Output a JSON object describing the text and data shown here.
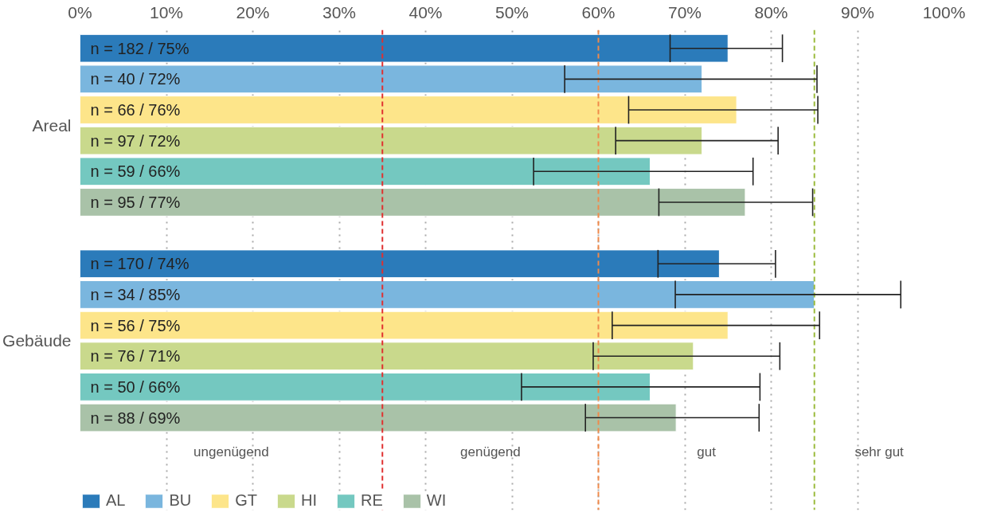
{
  "chart_data": {
    "type": "bar",
    "orientation": "horizontal",
    "categories": [
      "Areal",
      "Gebäude"
    ],
    "series": [
      {
        "name": "AL",
        "color": "#2b7bba",
        "values": [
          75,
          74
        ],
        "errors": [
          [
            68.3,
            81.3
          ],
          [
            66.9,
            80.5
          ]
        ],
        "value_labels": [
          "n = 182 / 75%",
          "n = 170 / 74%"
        ]
      },
      {
        "name": "BU",
        "color": "#7ab6de",
        "values": [
          72,
          85
        ],
        "errors": [
          [
            56.1,
            85.3
          ],
          [
            68.9,
            95
          ]
        ],
        "value_labels": [
          "n = 40 / 72%",
          "n = 34 / 85%"
        ]
      },
      {
        "name": "GT",
        "color": "#fde58a",
        "values": [
          76,
          75
        ],
        "errors": [
          [
            63.5,
            85.4
          ],
          [
            61.6,
            85.6
          ]
        ],
        "value_labels": [
          "n = 66 / 76%",
          "n = 56 / 75%"
        ]
      },
      {
        "name": "HI",
        "color": "#c9d98c",
        "values": [
          72,
          71
        ],
        "errors": [
          [
            62,
            80.8
          ],
          [
            59.4,
            81
          ]
        ],
        "value_labels": [
          "n = 97 / 72%",
          "n = 76 / 71%"
        ]
      },
      {
        "name": "RE",
        "color": "#74c8c0",
        "values": [
          66,
          66
        ],
        "errors": [
          [
            52.5,
            77.9
          ],
          [
            51.1,
            78.7
          ]
        ],
        "value_labels": [
          "n = 59 / 66%",
          "n = 50 / 66%"
        ]
      },
      {
        "name": "WI",
        "color": "#a9c2a8",
        "values": [
          77,
          69
        ],
        "errors": [
          [
            67,
            84.8
          ],
          [
            58.5,
            78.6
          ]
        ],
        "value_labels": [
          "n = 95 / 77%",
          "n = 88 / 69%"
        ]
      }
    ],
    "xlim": [
      0,
      100
    ],
    "xticks": [
      {
        "value": 0,
        "label": "0%"
      },
      {
        "value": 10,
        "label": "10%"
      },
      {
        "value": 20,
        "label": "20%"
      },
      {
        "value": 30,
        "label": "30%"
      },
      {
        "value": 40,
        "label": "40%"
      },
      {
        "value": 50,
        "label": "50%"
      },
      {
        "value": 60,
        "label": "60%"
      },
      {
        "value": 70,
        "label": "70%"
      },
      {
        "value": 80,
        "label": "80%"
      },
      {
        "value": 90,
        "label": "90%"
      },
      {
        "value": 100,
        "label": "100%"
      }
    ],
    "ref_lines": [
      {
        "axis": "x",
        "value": 35,
        "color": "#e03030",
        "line_style": "dashed"
      },
      {
        "axis": "x",
        "value": 60,
        "color": "#f08a4b",
        "line_style": "dashed"
      },
      {
        "axis": "x",
        "value": 85,
        "color": "#9bbb3c",
        "line_style": "dashed"
      }
    ],
    "annotations": [
      "ungenügend",
      "genügend",
      "gut",
      "sehr gut"
    ],
    "grid": "x",
    "legend": "bottom"
  }
}
